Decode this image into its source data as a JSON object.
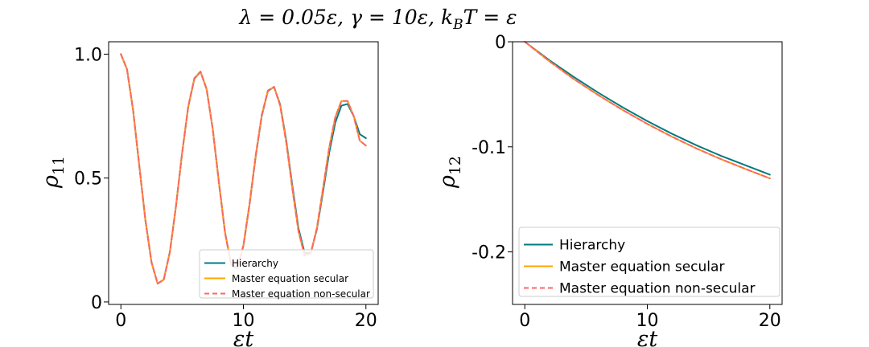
{
  "figure": {
    "title": "λ = 0.05ε, γ = 10ε, k_BT = ε"
  },
  "chart_data": [
    {
      "type": "line",
      "xlabel": "εt",
      "ylabel": "ρ11",
      "xlim": [
        -1,
        21
      ],
      "ylim": [
        -0.01,
        1.05
      ],
      "x_ticks": [
        0,
        10,
        20
      ],
      "x_tick_labels": [
        "0",
        "10",
        "20"
      ],
      "y_ticks": [
        0,
        0.5,
        1.0
      ],
      "y_tick_labels": [
        "0",
        "0.5",
        "1.0"
      ],
      "grid": false,
      "legend_position": "lower-right",
      "series": [
        {
          "name": "Hierarchy",
          "color": "#007b7f",
          "dash": "solid",
          "x": [
            0,
            0.5,
            1,
            1.5,
            2,
            2.5,
            3,
            3.5,
            4,
            4.5,
            5,
            5.5,
            6,
            6.5,
            7,
            7.5,
            8,
            8.5,
            9,
            9.5,
            10,
            10.5,
            11,
            11.5,
            12,
            12.5,
            13,
            13.5,
            14,
            14.5,
            15,
            15.5,
            16,
            16.5,
            17,
            17.5,
            18,
            18.5,
            19,
            19.5,
            20
          ],
          "y": [
            1.0,
            0.939,
            0.773,
            0.551,
            0.331,
            0.16,
            0.074,
            0.09,
            0.202,
            0.388,
            0.601,
            0.788,
            0.901,
            0.929,
            0.858,
            0.697,
            0.484,
            0.281,
            0.152,
            0.136,
            0.226,
            0.393,
            0.586,
            0.751,
            0.851,
            0.868,
            0.797,
            0.651,
            0.467,
            0.296,
            0.197,
            0.198,
            0.294,
            0.445,
            0.602,
            0.724,
            0.792,
            0.799,
            0.75,
            0.677,
            0.661
          ]
        },
        {
          "name": "Master equation secular",
          "color": "#ffa500",
          "dash": "solid",
          "x": [
            0,
            0.5,
            1,
            1.5,
            2,
            2.5,
            3,
            3.5,
            4,
            4.5,
            5,
            5.5,
            6,
            6.5,
            7,
            7.5,
            8,
            8.5,
            9,
            9.5,
            10,
            10.5,
            11,
            11.5,
            12,
            12.5,
            13,
            13.5,
            14,
            14.5,
            15,
            15.5,
            16,
            16.5,
            17,
            17.5,
            18,
            18.5,
            19,
            19.5,
            20
          ],
          "y": [
            1.0,
            0.939,
            0.773,
            0.551,
            0.331,
            0.16,
            0.074,
            0.09,
            0.202,
            0.388,
            0.602,
            0.79,
            0.903,
            0.93,
            0.859,
            0.696,
            0.482,
            0.279,
            0.15,
            0.135,
            0.228,
            0.396,
            0.59,
            0.755,
            0.853,
            0.868,
            0.793,
            0.643,
            0.455,
            0.284,
            0.187,
            0.196,
            0.299,
            0.459,
            0.622,
            0.746,
            0.811,
            0.811,
            0.75,
            0.651,
            0.631
          ]
        },
        {
          "name": "Master equation non-secular",
          "color": "#ff6666",
          "dash": "dashed",
          "x": [
            0,
            0.5,
            1,
            1.5,
            2,
            2.5,
            3,
            3.5,
            4,
            4.5,
            5,
            5.5,
            6,
            6.5,
            7,
            7.5,
            8,
            8.5,
            9,
            9.5,
            10,
            10.5,
            11,
            11.5,
            12,
            12.5,
            13,
            13.5,
            14,
            14.5,
            15,
            15.5,
            16,
            16.5,
            17,
            17.5,
            18,
            18.5,
            19,
            19.5,
            20
          ],
          "y": [
            1.0,
            0.939,
            0.773,
            0.551,
            0.331,
            0.16,
            0.074,
            0.09,
            0.202,
            0.388,
            0.602,
            0.79,
            0.903,
            0.93,
            0.859,
            0.696,
            0.482,
            0.279,
            0.15,
            0.135,
            0.228,
            0.396,
            0.59,
            0.755,
            0.853,
            0.868,
            0.793,
            0.643,
            0.455,
            0.284,
            0.187,
            0.196,
            0.299,
            0.459,
            0.622,
            0.746,
            0.811,
            0.811,
            0.75,
            0.651,
            0.631
          ]
        }
      ]
    },
    {
      "type": "line",
      "xlabel": "εt",
      "ylabel": "ρ12",
      "xlim": [
        -1,
        21
      ],
      "ylim": [
        -0.25,
        0.0
      ],
      "x_ticks": [
        0,
        10,
        20
      ],
      "x_tick_labels": [
        "0",
        "10",
        "20"
      ],
      "y_ticks": [
        0,
        -0.1,
        -0.2
      ],
      "y_tick_labels": [
        "0",
        "-0.1",
        "-0.2"
      ],
      "grid": false,
      "legend_position": "lower-right",
      "series": [
        {
          "name": "Hierarchy",
          "color": "#007b7f",
          "dash": "solid",
          "x": [
            0,
            2,
            4,
            6,
            8,
            10,
            12,
            14,
            16,
            18,
            20
          ],
          "y": [
            0.0,
            -0.0175,
            -0.0335,
            -0.0485,
            -0.0625,
            -0.0755,
            -0.0875,
            -0.0985,
            -0.1085,
            -0.1175,
            -0.1265
          ]
        },
        {
          "name": "Master equation secular",
          "color": "#ffa500",
          "dash": "solid",
          "x": [
            0,
            2,
            4,
            6,
            8,
            10,
            12,
            14,
            16,
            18,
            20
          ],
          "y": [
            0.0,
            -0.0185,
            -0.0355,
            -0.0508,
            -0.065,
            -0.0782,
            -0.0903,
            -0.1015,
            -0.1117,
            -0.121,
            -0.13
          ]
        },
        {
          "name": "Master equation non-secular",
          "color": "#ff6666",
          "dash": "dashed",
          "x": [
            0,
            2,
            4,
            6,
            8,
            10,
            12,
            14,
            16,
            18,
            20
          ],
          "y": [
            0.0,
            -0.0185,
            -0.0355,
            -0.0508,
            -0.065,
            -0.0782,
            -0.0903,
            -0.1015,
            -0.1117,
            -0.121,
            -0.13
          ]
        }
      ]
    }
  ]
}
